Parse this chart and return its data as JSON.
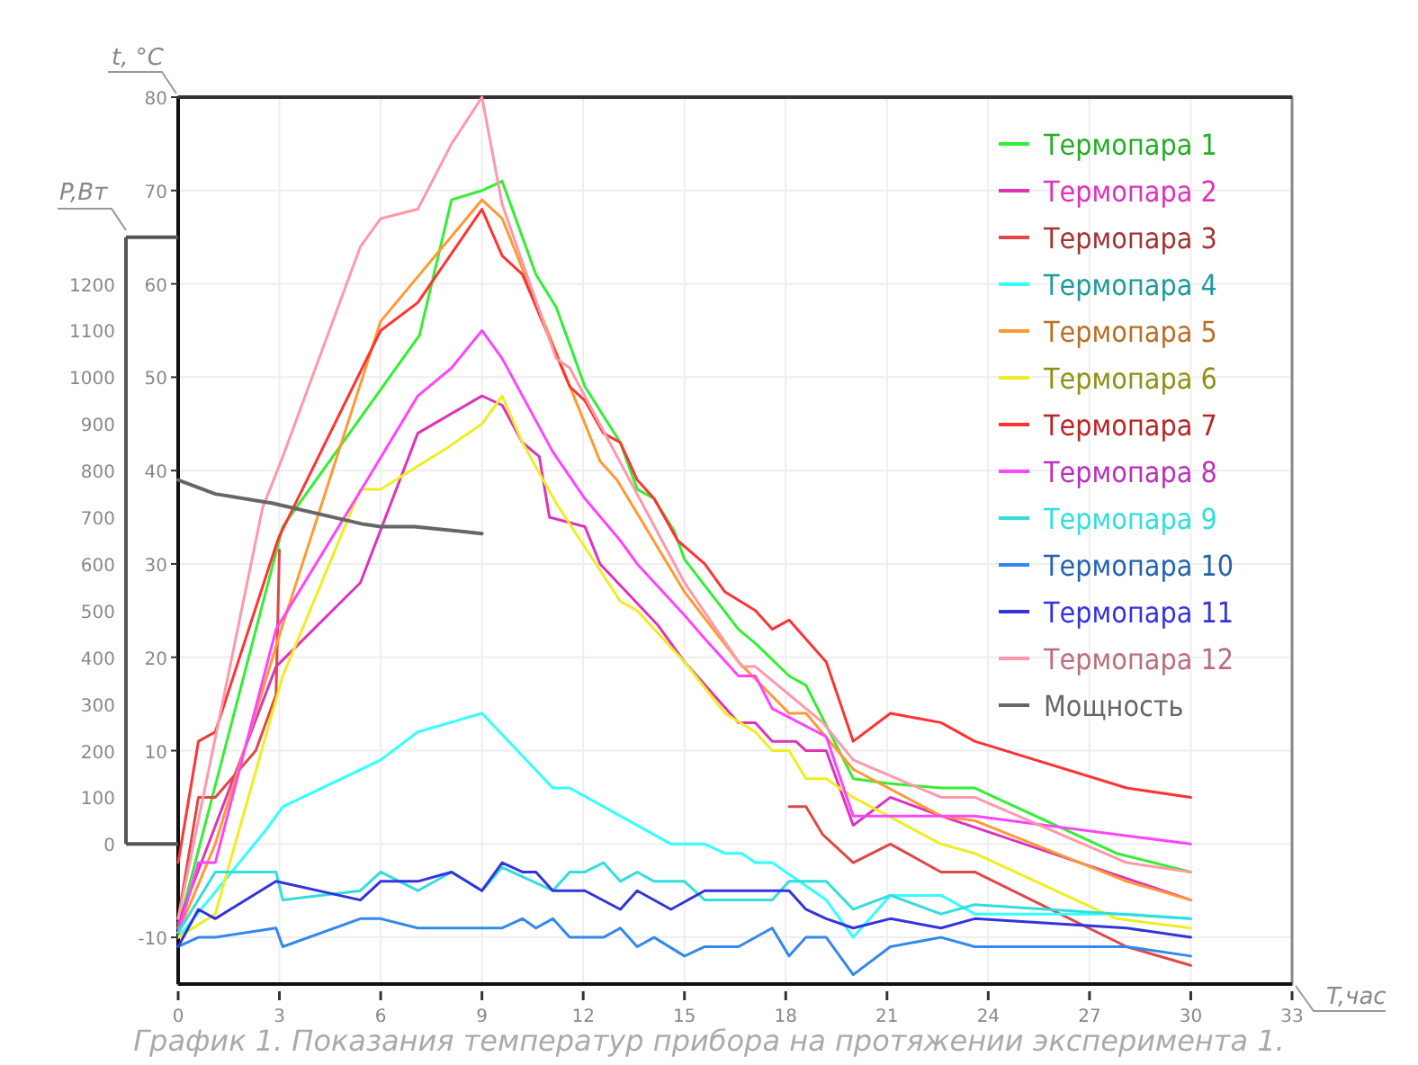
{
  "chart_data": {
    "type": "line",
    "xlabel": "T,час",
    "ylabel": "t, °C",
    "y2label": "P,Вт",
    "xlim": [
      0,
      33
    ],
    "xticks": [
      0,
      3,
      6,
      9,
      12,
      15,
      18,
      21,
      24,
      27,
      30,
      33
    ],
    "ylim": [
      -15,
      80
    ],
    "yticks": [
      -10,
      {
        "value": 0,
        "label": null
      },
      10,
      20,
      30,
      40,
      50,
      60,
      70,
      80
    ],
    "y2lim": [
      0,
      1300
    ],
    "y2ticks": [
      0,
      100,
      200,
      300,
      400,
      500,
      600,
      700,
      800,
      900,
      1000,
      1100,
      1200
    ],
    "grid": true,
    "legend": "top right",
    "annotations": [
      "График 1. Показания температур прибора на протяжении эксперимента 1."
    ],
    "series": [
      {
        "name": "Термопара 1",
        "color": "#33ee33",
        "x": [
          0,
          3.1,
          7.15,
          8.1,
          9,
          9.6,
          10.6,
          11.2,
          12.05,
          13.1,
          13.6,
          14.1,
          14.7,
          15,
          16.6,
          17.1,
          18.1,
          18.6,
          20,
          21,
          22.6,
          23.6,
          27.8,
          30
        ],
        "values": [
          -9,
          34,
          54.5,
          69,
          70,
          71,
          61,
          57.5,
          49,
          43,
          38,
          37,
          33.5,
          30.5,
          23,
          21.5,
          18,
          17,
          7,
          6.5,
          6,
          6,
          -1,
          -3
        ]
      },
      {
        "name": "Термопара 2",
        "color": "#dd33bb",
        "x": [
          0,
          2.9,
          5.4,
          7.1,
          9,
          9.6,
          10.2,
          10.7,
          11,
          12.05,
          12.5,
          14.2,
          15,
          16.6,
          17.1,
          17.6,
          18.3,
          18.6,
          19.2,
          20,
          21.1,
          22.6,
          30
        ],
        "values": [
          -8.5,
          19,
          28,
          44,
          48,
          47,
          43,
          41.5,
          35,
          34,
          30,
          23.5,
          19.5,
          13,
          13,
          11,
          11,
          10,
          10,
          2,
          5,
          3,
          -6
        ]
      },
      {
        "name": "Термопара 3",
        "color": "#e04848",
        "x": [
          0,
          0.6,
          1.1,
          2.3,
          2.9,
          3,
          3.1,
          18.1,
          18.6,
          19.1,
          20,
          21.1,
          22.6,
          23.6,
          28.1,
          30
        ],
        "values": [
          -8,
          5,
          5,
          10,
          16,
          31.5,
          null,
          4,
          4,
          1,
          -2,
          0,
          -3,
          -3,
          -11,
          -13
        ]
      },
      {
        "name": "Термопара 4",
        "color": "#33ffff",
        "x": [
          0,
          2.6,
          3.1,
          6,
          7.1,
          9,
          11.1,
          11.6,
          14.6,
          15.6,
          16.2,
          16.7,
          17.1,
          17.6,
          19.2,
          20,
          21.1,
          22.6,
          23.6,
          28.1,
          30
        ],
        "values": [
          -10,
          1.5,
          4,
          9,
          12,
          14,
          6,
          6,
          0,
          0,
          -1,
          -1,
          -2,
          -2,
          -6,
          -10,
          -5.5,
          -5.5,
          -7.5,
          -7.5,
          -8
        ]
      },
      {
        "name": "Термопара 5",
        "color": "#ff9933",
        "x": [
          0,
          1.1,
          3.1,
          6,
          9,
          9.6,
          12.5,
          13,
          15,
          16.6,
          18.1,
          18.6,
          20,
          22.6,
          23.6,
          28.1,
          30
        ],
        "values": [
          -9.5,
          0,
          23.5,
          56,
          69,
          67,
          41,
          39,
          27,
          19.5,
          14,
          14,
          8,
          3,
          2.5,
          -4,
          -6
        ]
      },
      {
        "name": "Термопара 6",
        "color": "#eeee22",
        "x": [
          0,
          1.1,
          3.1,
          5.4,
          6,
          8,
          9,
          9.6,
          10.2,
          11.2,
          13.1,
          13.6,
          15,
          16.2,
          17.1,
          17.6,
          18.1,
          18.6,
          19.2,
          20,
          22.6,
          23.6,
          27.8,
          30
        ],
        "values": [
          -10,
          -7.5,
          18,
          38,
          38,
          42.5,
          45,
          48,
          43,
          36.5,
          26,
          25,
          19.5,
          14,
          12,
          10,
          10,
          7,
          7,
          5,
          0,
          -1,
          -8,
          -9
        ]
      },
      {
        "name": "Термопара 7",
        "color": "#ff3333",
        "x": [
          0,
          0.6,
          1.1,
          2.9,
          3,
          6,
          7.1,
          9,
          9.6,
          10.2,
          11.6,
          12.05,
          12.6,
          13.1,
          13.6,
          14.1,
          14.8,
          15.6,
          16.2,
          17.1,
          17.6,
          18.1,
          19.2,
          20,
          21.1,
          22.6,
          23.6,
          28.1,
          30
        ],
        "values": [
          -2,
          11,
          12,
          32,
          33,
          55,
          58,
          68,
          63,
          61,
          49,
          47.5,
          44,
          43,
          39,
          37,
          32.5,
          30,
          27,
          25,
          23,
          24,
          19.5,
          11,
          14,
          13,
          11,
          6,
          5
        ]
      },
      {
        "name": "Термопара 8",
        "color": "#ff44ff",
        "x": [
          0,
          0.6,
          1.1,
          2.9,
          5.6,
          7.1,
          8.1,
          9,
          9.6,
          10.2,
          11.1,
          12.05,
          13.1,
          13.6,
          15,
          15.6,
          16.6,
          17.1,
          17.6,
          19.2,
          20,
          21.1,
          23.6,
          30
        ],
        "values": [
          -9.5,
          -2,
          -2,
          23,
          39,
          48,
          51,
          55,
          52,
          48,
          42,
          37,
          32.5,
          30,
          24.5,
          22,
          18,
          18,
          14.5,
          11.5,
          3,
          3,
          3,
          0
        ]
      },
      {
        "name": "Термопара 9",
        "color": "#33dddd",
        "x": [
          0,
          1.1,
          2.9,
          3.1,
          5.4,
          6,
          7.1,
          8.1,
          9,
          9.6,
          11.1,
          11.6,
          12.05,
          12.6,
          13.1,
          13.6,
          14.1,
          15,
          15.6,
          17.6,
          18.1,
          19.2,
          20,
          21.1,
          22.6,
          23.6,
          30
        ],
        "values": [
          -9.5,
          -3,
          -3,
          -6,
          -5,
          -3,
          -5,
          -3,
          -5,
          -2.5,
          -5,
          -3,
          -3,
          -2,
          -4,
          -3,
          -4,
          -4,
          -6,
          -6,
          -4,
          -4,
          -7,
          -5.5,
          -7.5,
          -6.5,
          -8
        ]
      },
      {
        "name": "Термопара 10",
        "color": "#3388ee",
        "x": [
          0,
          0.6,
          1.1,
          2.9,
          3.1,
          5.4,
          6,
          7.1,
          9.6,
          10.2,
          10.6,
          11.1,
          11.6,
          12.6,
          13.1,
          13.6,
          14.1,
          15,
          15.6,
          16.6,
          17.6,
          18.1,
          18.6,
          19.2,
          20,
          21.1,
          22.6,
          23.6,
          28.1,
          30
        ],
        "values": [
          -11,
          -10,
          -10,
          -9,
          -11,
          -8,
          -8,
          -9,
          -9,
          -8,
          -9,
          -8,
          -10,
          -10,
          -9,
          -11,
          -10,
          -12,
          -11,
          -11,
          -9,
          -12,
          -10,
          -10,
          -14,
          -11,
          -10,
          -11,
          -11,
          -12
        ]
      },
      {
        "name": "Термопара 11",
        "color": "#3333dd",
        "x": [
          0,
          0.6,
          1.1,
          2.9,
          5.4,
          6,
          7.1,
          8.1,
          9,
          9.6,
          10.2,
          10.6,
          11.1,
          12.05,
          13.1,
          13.6,
          14.6,
          15.6,
          17.6,
          18.1,
          18.6,
          19.2,
          20,
          21.1,
          22.6,
          23.6,
          28.1,
          30
        ],
        "values": [
          -11,
          -7,
          -8,
          -4,
          -6,
          -4,
          -4,
          -3,
          -5,
          -2,
          -3,
          -3,
          -5,
          -5,
          -7,
          -5,
          -7,
          -5,
          -5,
          -5,
          -7,
          -8,
          -9,
          -8,
          -9,
          -8,
          -9,
          -10
        ]
      },
      {
        "name": "Термопара 12",
        "color": "#ff99aa",
        "x": [
          0,
          2.5,
          3.1,
          5.4,
          6,
          7.1,
          8.1,
          9,
          9.6,
          11.2,
          11.6,
          15,
          16.7,
          17.1,
          18.1,
          19.1,
          20,
          22.6,
          23.6,
          28.1,
          30
        ],
        "values": [
          -8,
          36,
          41.5,
          64,
          67,
          68,
          75,
          80,
          68.5,
          52,
          51,
          28,
          19,
          19,
          16,
          13,
          9,
          5,
          5,
          -2,
          -3
        ]
      },
      {
        "name": "Мощность",
        "color": "#666666",
        "axis": "y2",
        "x": [
          0,
          1.1,
          2.8,
          5.5,
          6,
          7,
          9
        ],
        "values": [
          780,
          750,
          730,
          685,
          680,
          680,
          665
        ]
      }
    ]
  }
}
